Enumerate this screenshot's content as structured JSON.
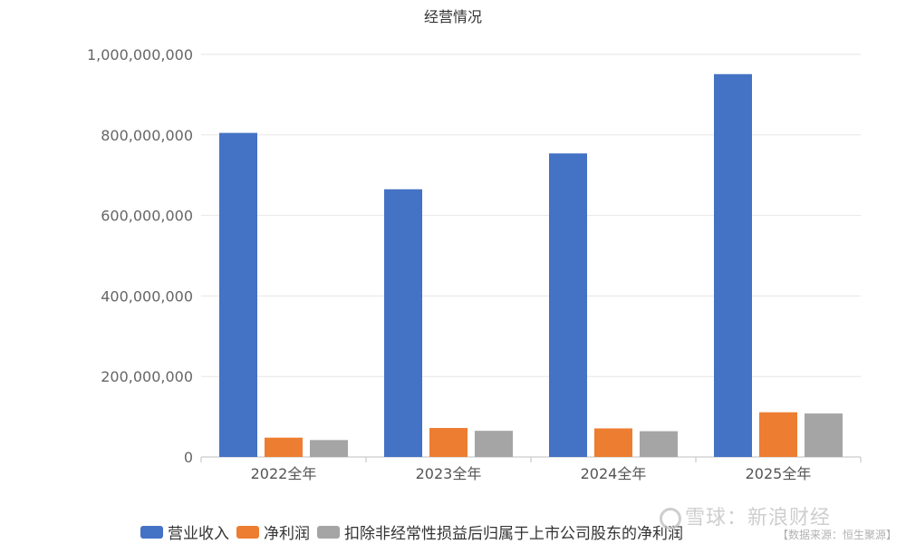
{
  "chart_data": {
    "type": "bar",
    "title": "经营情况",
    "categories": [
      "2022全年",
      "2023全年",
      "2024全年",
      "2025全年"
    ],
    "series": [
      {
        "name": "营业收入",
        "color": "#4472c4",
        "values": [
          805000000,
          665000000,
          754000000,
          951000000
        ]
      },
      {
        "name": "净利润",
        "color": "#ed7d31",
        "values": [
          48000000,
          72000000,
          71000000,
          111000000
        ]
      },
      {
        "name": "扣除非经常性损益后归属于上市公司股东的净利润",
        "color": "#a5a5a5",
        "values": [
          42000000,
          65000000,
          64000000,
          108000000
        ]
      }
    ],
    "ylim": [
      0,
      1000000000
    ],
    "yticks": [
      "0",
      "200,000,000",
      "400,000,000",
      "600,000,000",
      "800,000,000",
      "1,000,000,000"
    ],
    "grid": true,
    "legend_position": "bottom"
  },
  "watermark": {
    "text": "雪球：新浪财经",
    "source": "【数据来源：恒生聚源】"
  }
}
